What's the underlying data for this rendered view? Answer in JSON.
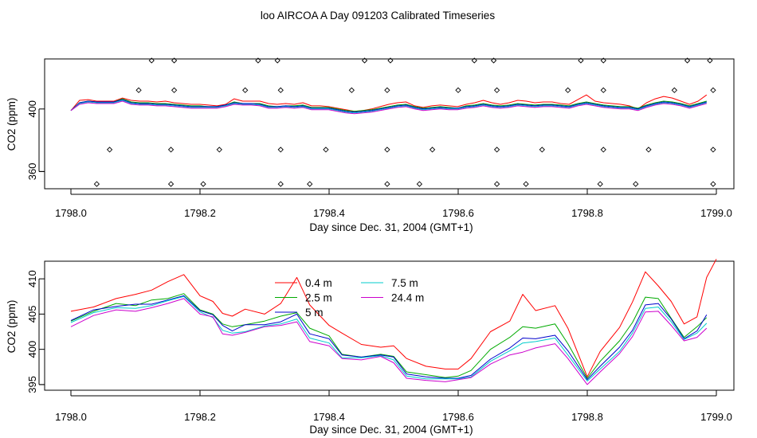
{
  "title": "loo AIRCOA A  Day 091203  Calibrated Timeseries",
  "chart_data": [
    {
      "type": "line",
      "xlabel": "Day since Dec. 31, 2004 (GMT+1)",
      "ylabel": "CO2 (ppm)",
      "xlim": [
        1798.0,
        1799.0
      ],
      "ylim": [
        349,
        432
      ],
      "xticks": [
        1798.0,
        1798.2,
        1798.4,
        1798.6,
        1798.8,
        1799.0
      ],
      "xtick_labels": [
        "1798.0",
        "1798.2",
        "1798.4",
        "1798.6",
        "1798.8",
        "1799.0"
      ],
      "yticks": [
        360,
        400
      ],
      "ytick_labels": [
        "360",
        "400"
      ],
      "diagnostic_points": {
        "x": [
          1798.04,
          1798.155,
          1798.205,
          1798.325,
          1798.37,
          1798.49,
          1798.54,
          1798.66,
          1798.705,
          1798.82,
          1798.875,
          1798.995,
          1798.06,
          1798.155,
          1798.23,
          1798.325,
          1798.395,
          1798.49,
          1798.56,
          1798.66,
          1798.73,
          1798.825,
          1798.895,
          1798.995,
          1798.105,
          1798.16,
          1798.27,
          1798.325,
          1798.435,
          1798.49,
          1798.6,
          1798.66,
          1798.77,
          1798.825,
          1798.935,
          1798.995,
          1798.125,
          1798.16,
          1798.29,
          1798.32,
          1798.455,
          1798.495,
          1798.625,
          1798.655,
          1798.79,
          1798.825,
          1798.955,
          1798.99
        ],
        "y": [
          352,
          352,
          352,
          352,
          352,
          352,
          352,
          352,
          352,
          352,
          352,
          352,
          374,
          374,
          374,
          374,
          374,
          374,
          374,
          374,
          374,
          374,
          374,
          374,
          412,
          412,
          412,
          412,
          412,
          412,
          412,
          412,
          412,
          412,
          412,
          412,
          431,
          431,
          431,
          431,
          431,
          431,
          431,
          431,
          431,
          431,
          431,
          431
        ]
      },
      "series": [
        {
          "color": "#ff0000",
          "values": [
            399.0,
            405.5,
            406.0,
            405.0,
            405.0,
            405.0,
            407.0,
            405.5,
            405.0,
            405.0,
            404.5,
            405.0,
            404.0,
            403.5,
            403.0,
            403.0,
            402.5,
            402.0,
            403.0,
            406.5,
            405.0,
            405.0,
            405.0,
            403.5,
            403.0,
            403.5,
            403.0,
            404.0,
            402.0,
            402.0,
            401.5,
            400.5,
            399.5,
            398.5,
            399.0,
            400.0,
            401.5,
            403.0,
            404.0,
            404.5,
            402.0,
            401.0,
            402.0,
            402.5,
            402.0,
            401.5,
            403.0,
            404.0,
            405.5,
            404.0,
            403.0,
            404.0,
            405.5,
            405.0,
            404.0,
            404.5,
            404.5,
            403.5,
            403.0,
            406.0,
            409.0,
            405.0,
            404.0,
            403.5,
            403.0,
            402.0,
            400.0,
            404.0,
            406.5,
            408.0,
            407.0,
            405.0,
            403.0,
            405.0,
            409.0
          ]
        },
        {
          "color": "#00aa00",
          "values": [
            399.0,
            404.0,
            405.0,
            404.5,
            404.5,
            404.5,
            406.5,
            404.5,
            404.0,
            404.0,
            403.5,
            403.5,
            403.0,
            402.5,
            402.0,
            402.0,
            401.5,
            401.5,
            402.5,
            404.5,
            403.5,
            403.5,
            403.5,
            402.0,
            401.5,
            402.0,
            402.0,
            402.5,
            401.0,
            401.0,
            401.0,
            400.0,
            399.0,
            398.5,
            399.0,
            399.5,
            400.5,
            401.5,
            402.5,
            403.0,
            401.5,
            400.5,
            401.0,
            401.5,
            401.0,
            400.5,
            402.0,
            402.5,
            403.5,
            402.5,
            402.0,
            402.5,
            403.5,
            403.0,
            402.5,
            403.0,
            403.0,
            402.5,
            402.0,
            403.5,
            404.5,
            403.5,
            402.5,
            402.0,
            401.5,
            401.5,
            400.5,
            402.5,
            404.0,
            405.0,
            404.5,
            403.5,
            402.0,
            403.5,
            405.0
          ]
        },
        {
          "color": "#0000cc",
          "values": [
            399.0,
            404.0,
            405.0,
            404.5,
            404.5,
            404.5,
            406.0,
            404.0,
            403.5,
            403.5,
            403.0,
            403.0,
            402.5,
            402.0,
            401.5,
            401.5,
            401.5,
            401.5,
            402.5,
            404.0,
            403.5,
            403.5,
            403.0,
            401.5,
            401.5,
            402.0,
            401.5,
            402.0,
            400.5,
            400.5,
            400.5,
            399.5,
            398.5,
            398.0,
            398.5,
            399.0,
            400.0,
            401.0,
            402.0,
            402.5,
            401.0,
            400.0,
            400.5,
            401.0,
            400.5,
            400.5,
            401.5,
            402.0,
            403.0,
            402.0,
            401.5,
            402.0,
            403.0,
            402.5,
            402.0,
            402.5,
            402.5,
            402.0,
            401.5,
            403.0,
            404.0,
            403.0,
            402.0,
            401.5,
            401.0,
            401.0,
            400.0,
            402.0,
            403.5,
            404.5,
            404.0,
            403.0,
            401.5,
            403.0,
            404.5
          ]
        },
        {
          "color": "#00cccc",
          "values": [
            399.0,
            403.5,
            404.5,
            404.0,
            404.0,
            404.0,
            405.5,
            403.5,
            403.0,
            403.0,
            402.5,
            402.5,
            402.0,
            401.5,
            401.0,
            401.0,
            401.0,
            401.0,
            402.0,
            403.5,
            403.0,
            403.0,
            402.5,
            401.0,
            401.0,
            401.5,
            401.0,
            401.5,
            400.0,
            400.0,
            400.0,
            399.0,
            398.0,
            397.5,
            398.0,
            398.5,
            399.5,
            400.5,
            401.5,
            402.0,
            400.5,
            399.5,
            400.0,
            400.5,
            400.0,
            400.0,
            401.0,
            401.5,
            402.5,
            401.5,
            401.0,
            401.5,
            402.5,
            402.0,
            401.5,
            402.0,
            402.0,
            401.5,
            401.0,
            402.5,
            403.5,
            402.5,
            401.5,
            401.0,
            400.5,
            400.5,
            399.5,
            401.5,
            403.0,
            404.0,
            403.5,
            402.5,
            401.0,
            402.5,
            404.0
          ]
        },
        {
          "color": "#cc00cc",
          "values": [
            399.0,
            403.0,
            404.0,
            403.5,
            403.5,
            403.5,
            405.0,
            403.0,
            402.5,
            402.5,
            402.0,
            402.0,
            401.5,
            401.0,
            400.5,
            400.5,
            400.5,
            400.5,
            401.5,
            403.0,
            402.5,
            402.5,
            402.0,
            400.5,
            400.5,
            401.0,
            400.5,
            401.0,
            399.5,
            399.5,
            399.5,
            398.5,
            397.5,
            397.0,
            397.5,
            398.0,
            399.0,
            400.0,
            401.0,
            401.5,
            400.0,
            399.0,
            399.5,
            400.0,
            399.5,
            399.5,
            400.5,
            401.0,
            402.0,
            401.0,
            400.5,
            401.0,
            402.0,
            401.5,
            401.0,
            401.5,
            401.5,
            401.0,
            400.5,
            402.0,
            403.0,
            402.0,
            401.0,
            400.5,
            400.0,
            400.0,
            399.0,
            401.0,
            402.5,
            403.5,
            403.0,
            402.0,
            400.5,
            402.0,
            403.5
          ]
        }
      ]
    },
    {
      "type": "line",
      "xlabel": "Day since Dec. 31, 2004 (GMT+1)",
      "ylabel": "CO2 (ppm)",
      "xlim": [
        1798.0,
        1799.0
      ],
      "ylim": [
        394.2,
        412.5
      ],
      "xticks": [
        1798.0,
        1798.2,
        1798.4,
        1798.6,
        1798.8,
        1799.0
      ],
      "xtick_labels": [
        "1798.0",
        "1798.2",
        "1798.4",
        "1798.6",
        "1798.8",
        "1799.0"
      ],
      "yticks": [
        395,
        400,
        405,
        410
      ],
      "ytick_labels": [
        "395",
        "400",
        "405",
        "410"
      ],
      "legend_position": "top-center",
      "series": [
        {
          "name": "0.4 m",
          "color": "#ff0000",
          "x": [
            1798.0,
            1798.035,
            1798.07,
            1798.1,
            1798.125,
            1798.15,
            1798.175,
            1798.2,
            1798.22,
            1798.235,
            1798.25,
            1798.27,
            1798.3,
            1798.325,
            1798.35,
            1798.37,
            1798.4,
            1798.42,
            1798.45,
            1798.48,
            1798.5,
            1798.52,
            1798.55,
            1798.58,
            1798.6,
            1798.62,
            1798.65,
            1798.68,
            1798.7,
            1798.72,
            1798.75,
            1798.77,
            1798.8,
            1798.82,
            1798.85,
            1798.87,
            1798.89,
            1798.91,
            1798.93,
            1798.95,
            1798.97,
            1798.985,
            1799.0
          ],
          "values": [
            405.4,
            406.0,
            407.2,
            407.8,
            408.4,
            409.6,
            410.6,
            407.6,
            406.8,
            405.1,
            404.7,
            405.7,
            405.0,
            406.5,
            410.2,
            406.3,
            403.4,
            402.3,
            400.7,
            400.3,
            400.5,
            398.7,
            397.6,
            397.2,
            397.2,
            398.7,
            402.5,
            404.0,
            407.8,
            405.5,
            406.2,
            403.0,
            396.1,
            399.7,
            403.1,
            406.7,
            411.0,
            409.0,
            406.8,
            403.6,
            404.6,
            410.2,
            412.8
          ]
        },
        {
          "name": "2.5 m",
          "color": "#00aa00",
          "x": [
            1798.0,
            1798.035,
            1798.07,
            1798.1,
            1798.125,
            1798.15,
            1798.175,
            1798.2,
            1798.22,
            1798.235,
            1798.25,
            1798.27,
            1798.3,
            1798.325,
            1798.35,
            1798.37,
            1798.4,
            1798.42,
            1798.45,
            1798.48,
            1798.5,
            1798.52,
            1798.55,
            1798.58,
            1798.6,
            1798.62,
            1798.65,
            1798.68,
            1798.7,
            1798.72,
            1798.75,
            1798.77,
            1798.8,
            1798.82,
            1798.85,
            1798.87,
            1798.89,
            1798.91,
            1798.93,
            1798.95,
            1798.97,
            1798.985
          ],
          "values": [
            404.0,
            405.4,
            406.5,
            406.2,
            407.0,
            407.2,
            407.9,
            405.6,
            405.0,
            403.6,
            403.2,
            403.5,
            404.0,
            404.7,
            405.2,
            403.0,
            401.9,
            399.3,
            398.9,
            399.3,
            399.0,
            396.8,
            396.4,
            396.0,
            396.2,
            397.0,
            400.0,
            401.7,
            403.2,
            403.0,
            403.6,
            400.8,
            395.9,
            398.3,
            401.2,
            403.8,
            407.4,
            407.2,
            404.4,
            401.7,
            403.2,
            404.5
          ]
        },
        {
          "name": "5 m",
          "color": "#0000cc",
          "x": [
            1798.0,
            1798.035,
            1798.07,
            1798.1,
            1798.125,
            1798.15,
            1798.175,
            1798.2,
            1798.22,
            1798.235,
            1798.25,
            1798.27,
            1798.3,
            1798.325,
            1798.35,
            1798.37,
            1798.4,
            1798.42,
            1798.45,
            1798.48,
            1798.5,
            1798.52,
            1798.55,
            1798.58,
            1798.6,
            1798.62,
            1798.65,
            1798.68,
            1798.7,
            1798.72,
            1798.75,
            1798.77,
            1798.8,
            1798.82,
            1798.85,
            1798.87,
            1798.89,
            1798.91,
            1798.93,
            1798.95,
            1798.97,
            1798.985
          ],
          "values": [
            404.1,
            405.6,
            406.1,
            406.4,
            406.4,
            407.0,
            407.6,
            405.5,
            404.9,
            403.4,
            402.6,
            403.5,
            403.5,
            403.9,
            405.0,
            402.2,
            401.5,
            399.2,
            398.9,
            399.2,
            398.9,
            396.5,
            396.1,
            395.9,
            395.9,
            396.3,
            398.6,
            400.2,
            401.6,
            401.5,
            402.0,
            399.8,
            395.7,
            397.6,
            400.3,
            402.7,
            406.3,
            406.5,
            404.3,
            401.5,
            402.6,
            404.9
          ]
        },
        {
          "name": "7.5 m",
          "color": "#00cccc",
          "x": [
            1798.0,
            1798.035,
            1798.07,
            1798.1,
            1798.125,
            1798.15,
            1798.175,
            1798.2,
            1798.22,
            1798.235,
            1798.25,
            1798.27,
            1798.3,
            1798.325,
            1798.35,
            1798.37,
            1798.4,
            1798.42,
            1798.45,
            1798.48,
            1798.5,
            1798.52,
            1798.55,
            1798.58,
            1798.6,
            1798.62,
            1798.65,
            1798.68,
            1798.7,
            1798.72,
            1798.75,
            1798.77,
            1798.8,
            1798.82,
            1798.85,
            1798.87,
            1798.89,
            1798.91,
            1798.93,
            1798.95,
            1798.97,
            1798.985
          ],
          "values": [
            403.8,
            405.2,
            405.9,
            405.8,
            406.2,
            406.9,
            407.5,
            405.3,
            404.5,
            402.7,
            402.3,
            402.5,
            403.3,
            403.6,
            404.3,
            401.6,
            400.9,
            398.8,
            398.8,
            399.1,
            398.5,
            396.2,
            395.8,
            395.8,
            395.8,
            396.1,
            398.3,
            399.8,
            400.9,
            401.1,
            401.6,
            399.2,
            395.5,
            397.2,
            399.7,
            402.3,
            405.8,
            406.0,
            403.9,
            401.4,
            402.3,
            403.7
          ]
        },
        {
          "name": "24.4 m",
          "color": "#cc00cc",
          "x": [
            1798.0,
            1798.035,
            1798.07,
            1798.1,
            1798.125,
            1798.15,
            1798.175,
            1798.2,
            1798.22,
            1798.235,
            1798.25,
            1798.27,
            1798.3,
            1798.325,
            1798.35,
            1798.37,
            1798.4,
            1798.42,
            1798.45,
            1798.48,
            1798.5,
            1798.52,
            1798.55,
            1798.58,
            1798.6,
            1798.62,
            1798.65,
            1798.68,
            1798.7,
            1798.72,
            1798.75,
            1798.77,
            1798.8,
            1798.82,
            1798.85,
            1798.87,
            1798.89,
            1798.91,
            1798.93,
            1798.95,
            1798.97,
            1798.985
          ],
          "values": [
            403.2,
            404.8,
            405.6,
            405.4,
            405.9,
            406.5,
            407.2,
            405.0,
            404.6,
            402.2,
            402.0,
            402.4,
            403.2,
            403.4,
            403.9,
            401.1,
            400.5,
            398.7,
            398.5,
            399.0,
            398.1,
            395.9,
            395.6,
            395.4,
            395.7,
            396.0,
            397.9,
            399.2,
            399.6,
            400.2,
            400.8,
            398.7,
            395.0,
            396.8,
            399.4,
            401.8,
            405.3,
            405.4,
            403.4,
            401.2,
            401.7,
            403.0
          ]
        }
      ]
    }
  ]
}
